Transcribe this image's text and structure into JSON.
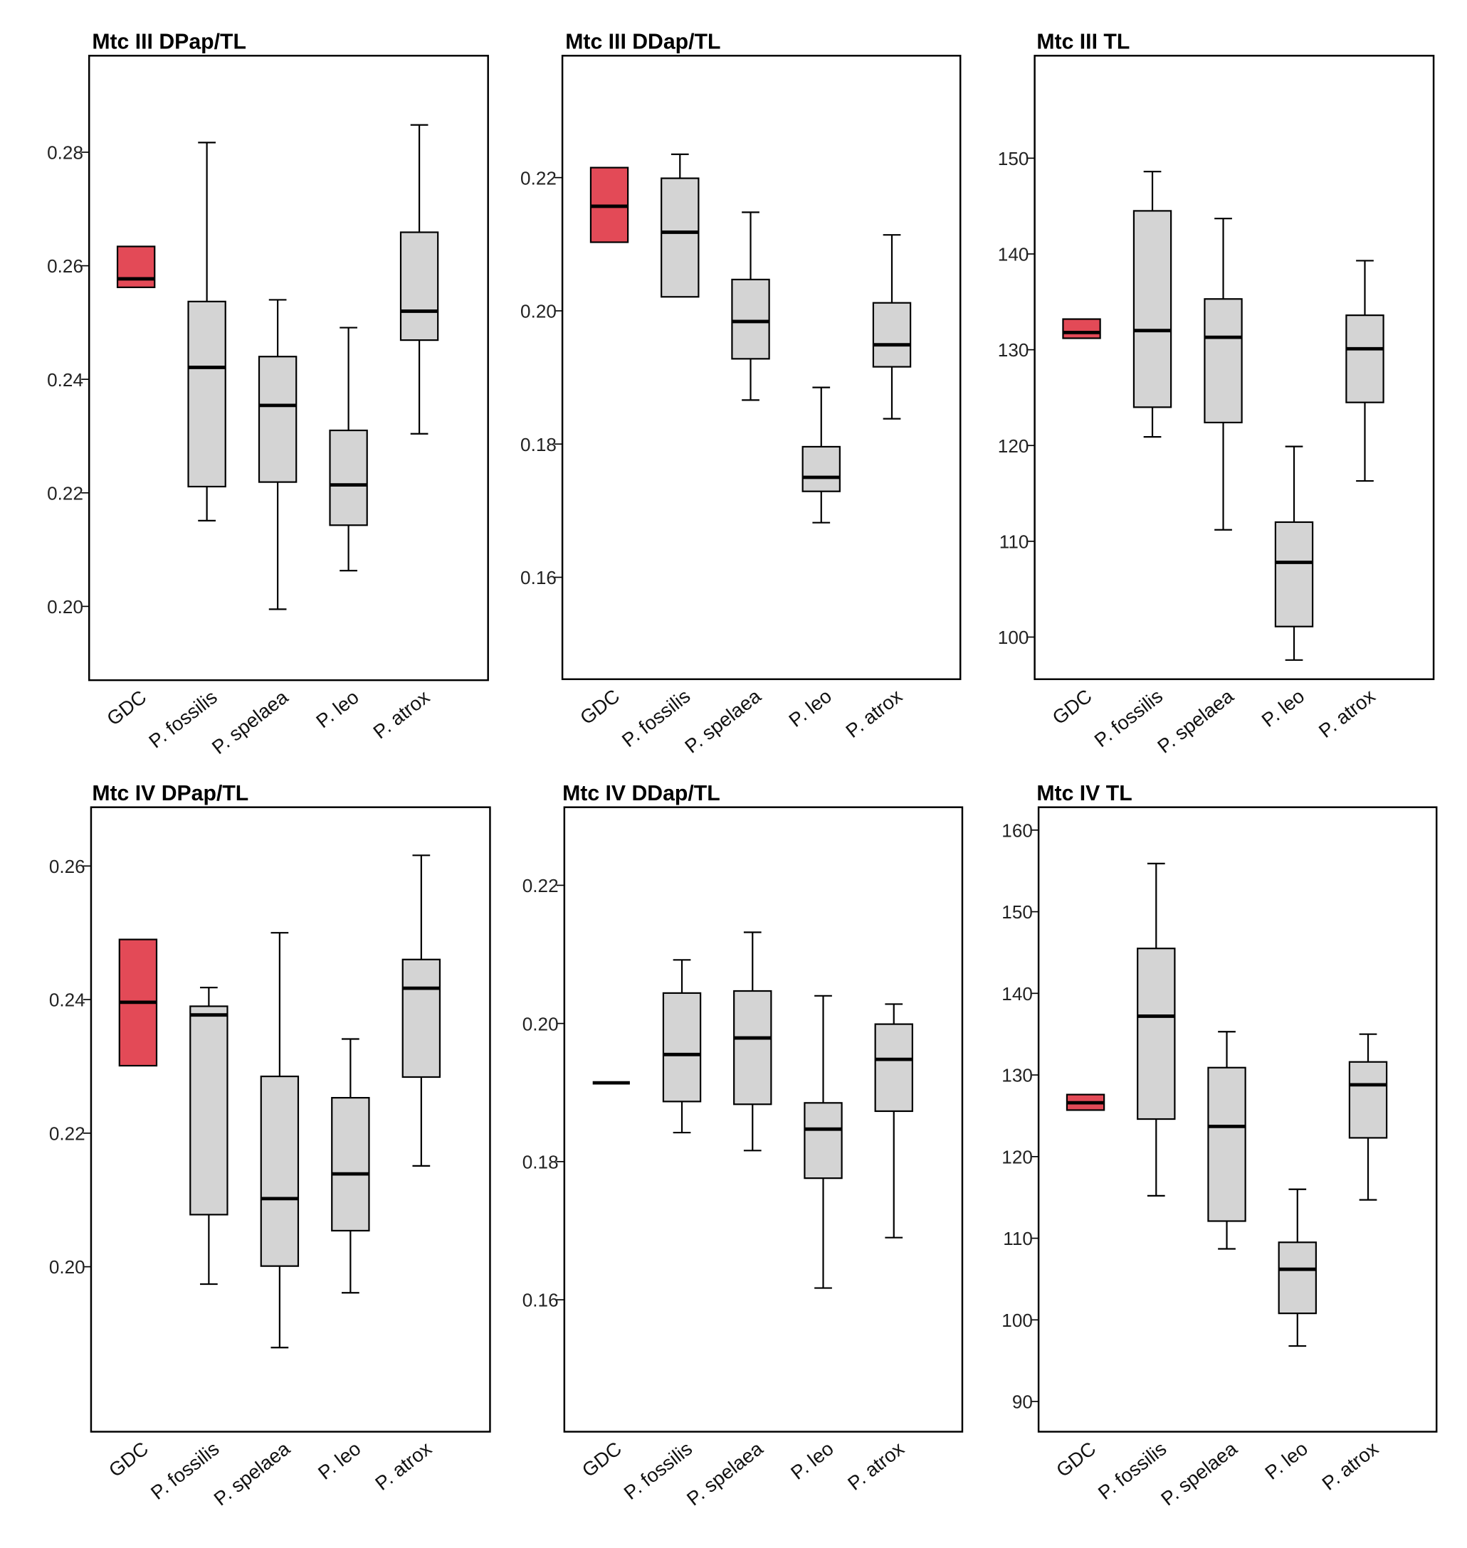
{
  "colors": {
    "highlight": "#e34a57",
    "box": "#d4d4d4",
    "line": "#000000"
  },
  "chart_data": [
    {
      "type": "boxplot",
      "title": "Mtc III DPap/TL",
      "categories": [
        "GDC",
        "P. fossilis",
        "P. spelaea",
        "P. leo",
        "P. atrox"
      ],
      "ylim": [
        0.187,
        0.297
      ],
      "yticks": [
        0.28,
        0.26,
        0.24,
        0.22,
        0.2
      ],
      "ytick_labels": [
        "0.28",
        "0.26",
        "0.24",
        "0.22",
        "0.20"
      ],
      "boxes": [
        {
          "min": 0.2562,
          "q1": 0.2562,
          "median": 0.2577,
          "q3": 0.2634,
          "max": 0.2634
        },
        {
          "min": 0.2151,
          "q1": 0.2211,
          "median": 0.2421,
          "q3": 0.2537,
          "max": 0.2817
        },
        {
          "min": 0.1995,
          "q1": 0.2219,
          "median": 0.2354,
          "q3": 0.244,
          "max": 0.254
        },
        {
          "min": 0.2063,
          "q1": 0.2143,
          "median": 0.2214,
          "q3": 0.231,
          "max": 0.2491
        },
        {
          "min": 0.2304,
          "q1": 0.2469,
          "median": 0.252,
          "q3": 0.2659,
          "max": 0.2848
        }
      ]
    },
    {
      "type": "boxplot",
      "title": "Mtc III  DDap/TL",
      "categories": [
        "GDC",
        "P. fossilis",
        "P. spelaea",
        "P. leo",
        "P. atrox"
      ],
      "ylim": [
        0.1447,
        0.2383
      ],
      "yticks": [
        0.22,
        0.2,
        0.18,
        0.16
      ],
      "ytick_labels": [
        "0.22",
        "0.20",
        "0.18",
        "0.16"
      ],
      "boxes": [
        {
          "min": 0.2103,
          "q1": 0.2103,
          "median": 0.2157,
          "q3": 0.2215,
          "max": 0.2215
        },
        {
          "min": 0.2021,
          "q1": 0.2021,
          "median": 0.2118,
          "q3": 0.2199,
          "max": 0.2235
        },
        {
          "min": 0.1866,
          "q1": 0.1928,
          "median": 0.1984,
          "q3": 0.2047,
          "max": 0.2148
        },
        {
          "min": 0.1682,
          "q1": 0.1729,
          "median": 0.175,
          "q3": 0.1796,
          "max": 0.1885
        },
        {
          "min": 0.1838,
          "q1": 0.1916,
          "median": 0.1949,
          "q3": 0.2012,
          "max": 0.2114
        }
      ]
    },
    {
      "type": "boxplot",
      "title": "Mtc III TL",
      "categories": [
        "GDC",
        "P. fossilis",
        "P. spelaea",
        "P. leo",
        "P. atrox"
      ],
      "ylim": [
        95.6,
        160.7
      ],
      "yticks": [
        150,
        140,
        130,
        120,
        110,
        100
      ],
      "ytick_labels": [
        "150",
        "140",
        "130",
        "120",
        "110",
        "100"
      ],
      "boxes": [
        {
          "min": 131.2,
          "q1": 131.2,
          "median": 131.8,
          "q3": 133.2,
          "max": 133.2
        },
        {
          "min": 120.9,
          "q1": 124.0,
          "median": 132.0,
          "q3": 144.5,
          "max": 148.6
        },
        {
          "min": 111.2,
          "q1": 122.4,
          "median": 131.3,
          "q3": 135.3,
          "max": 143.7
        },
        {
          "min": 97.6,
          "q1": 101.1,
          "median": 107.8,
          "q3": 112.0,
          "max": 119.9
        },
        {
          "min": 116.3,
          "q1": 124.5,
          "median": 130.1,
          "q3": 133.6,
          "max": 139.3
        }
      ]
    },
    {
      "type": "boxplot",
      "title": "Mtc IV DPap/TL",
      "categories": [
        "GDC",
        "P. fossilis",
        "P. spelaea",
        "P. leo",
        "P. atrox"
      ],
      "ylim": [
        0.1753,
        0.2688
      ],
      "yticks": [
        0.26,
        0.24,
        0.22,
        0.2
      ],
      "ytick_labels": [
        "0.26",
        "0.24",
        "0.22",
        "0.20"
      ],
      "boxes": [
        {
          "min": 0.2301,
          "q1": 0.2301,
          "median": 0.2396,
          "q3": 0.249,
          "max": 0.249
        },
        {
          "min": 0.1974,
          "q1": 0.2078,
          "median": 0.2377,
          "q3": 0.239,
          "max": 0.2418
        },
        {
          "min": 0.1879,
          "q1": 0.2001,
          "median": 0.2102,
          "q3": 0.2285,
          "max": 0.25
        },
        {
          "min": 0.1961,
          "q1": 0.2054,
          "median": 0.2139,
          "q3": 0.2253,
          "max": 0.2341
        },
        {
          "min": 0.2151,
          "q1": 0.2284,
          "median": 0.2417,
          "q3": 0.246,
          "max": 0.2616
        }
      ]
    },
    {
      "type": "boxplot",
      "title": "Mtc IV DDap/TL",
      "categories": [
        "GDC",
        "P. fossilis",
        "P. spelaea",
        "P. leo",
        "P. atrox"
      ],
      "ylim": [
        0.1409,
        0.2313
      ],
      "yticks": [
        0.22,
        0.2,
        0.18,
        0.16
      ],
      "ytick_labels": [
        "0.22",
        "0.20",
        "0.18",
        "0.16"
      ],
      "boxes": [
        {
          "min": 0.1914,
          "q1": 0.1914,
          "median": 0.1914,
          "q3": 0.1914,
          "max": 0.1914
        },
        {
          "min": 0.1842,
          "q1": 0.1887,
          "median": 0.1955,
          "q3": 0.2044,
          "max": 0.2092
        },
        {
          "min": 0.1816,
          "q1": 0.1883,
          "median": 0.1979,
          "q3": 0.2047,
          "max": 0.2132
        },
        {
          "min": 0.1617,
          "q1": 0.1776,
          "median": 0.1847,
          "q3": 0.1885,
          "max": 0.204
        },
        {
          "min": 0.169,
          "q1": 0.1873,
          "median": 0.1948,
          "q3": 0.1999,
          "max": 0.2028
        }
      ]
    },
    {
      "type": "boxplot",
      "title": "Mtc IV TL",
      "categories": [
        "GDC",
        "P. fossilis",
        "P. spelaea",
        "P. leo",
        "P. atrox"
      ],
      "ylim": [
        86.3,
        162.8
      ],
      "yticks": [
        160,
        150,
        140,
        130,
        120,
        110,
        100,
        90
      ],
      "ytick_labels": [
        "160",
        "150",
        "140",
        "130",
        "120",
        "110",
        "100",
        "90"
      ],
      "boxes": [
        {
          "min": 125.7,
          "q1": 125.7,
          "median": 126.6,
          "q3": 127.6,
          "max": 127.6
        },
        {
          "min": 115.2,
          "q1": 124.6,
          "median": 137.2,
          "q3": 145.5,
          "max": 155.9
        },
        {
          "min": 108.7,
          "q1": 112.1,
          "median": 123.7,
          "q3": 130.9,
          "max": 135.3
        },
        {
          "min": 96.8,
          "q1": 100.8,
          "median": 106.2,
          "q3": 109.5,
          "max": 116.0
        },
        {
          "min": 114.7,
          "q1": 122.3,
          "median": 128.8,
          "q3": 131.6,
          "max": 135.0
        }
      ]
    }
  ]
}
